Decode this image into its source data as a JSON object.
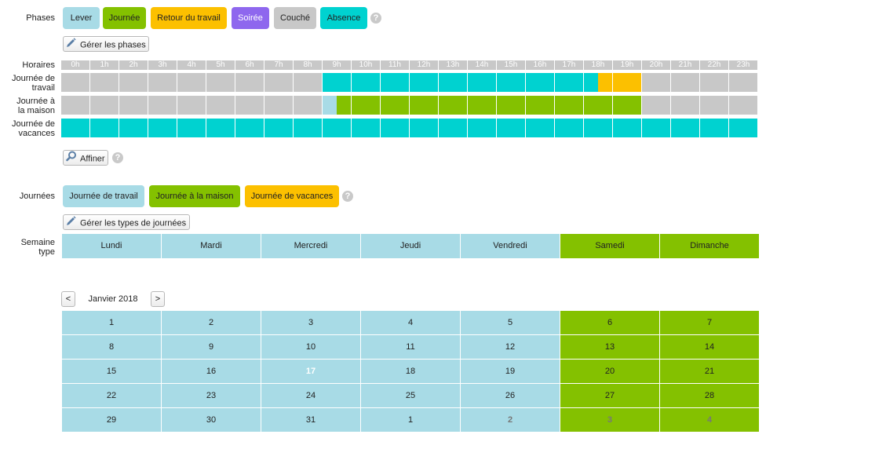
{
  "colors": {
    "lever": "#a8dbe6",
    "journee": "#84c100",
    "retour": "#fcc000",
    "soiree": "#8e67ee",
    "couche": "#c8c8c8",
    "absence": "#00d2d0",
    "hour_header": "#c8c8c8",
    "weekday": "#a8dbe6",
    "weekend": "#84c100"
  },
  "phases": {
    "label": "Phases",
    "chips": [
      {
        "key": "lever",
        "label": "Lever"
      },
      {
        "key": "journee",
        "label": "Journée"
      },
      {
        "key": "retour",
        "label": "Retour du travail"
      },
      {
        "key": "soiree",
        "label": "Soirée"
      },
      {
        "key": "couche",
        "label": "Couché"
      },
      {
        "key": "absence",
        "label": "Absence"
      }
    ],
    "help_icon": "?",
    "manage_button": "Gérer les phases",
    "manage_icon": "pencil-icon"
  },
  "schedule": {
    "hours_label": "Horaires",
    "hours": [
      "0h",
      "1h",
      "2h",
      "3h",
      "4h",
      "5h",
      "6h",
      "7h",
      "8h",
      "9h",
      "10h",
      "11h",
      "12h",
      "13h",
      "14h",
      "15h",
      "16h",
      "17h",
      "18h",
      "19h",
      "20h",
      "21h",
      "22h",
      "23h"
    ],
    "rows": [
      {
        "label_line1": "Journée de",
        "label_line2": "travail",
        "cells": [
          "couche",
          "couche",
          "couche",
          "couche",
          "couche",
          "couche",
          "couche",
          "couche",
          "couche",
          "absence",
          "absence",
          "absence",
          "absence",
          "absence",
          "absence",
          "absence",
          "absence",
          "absence",
          [
            "absence",
            "retour"
          ],
          "retour",
          "couche",
          "couche",
          "couche",
          "couche"
        ]
      },
      {
        "label_line1": "Journée à",
        "label_line2": "la maison",
        "cells": [
          "couche",
          "couche",
          "couche",
          "couche",
          "couche",
          "couche",
          "couche",
          "couche",
          "couche",
          [
            "lever",
            "journee"
          ],
          "journee",
          "journee",
          "journee",
          "journee",
          "journee",
          "journee",
          "journee",
          "journee",
          "journee",
          "journee",
          "couche",
          "couche",
          "couche",
          "couche"
        ]
      },
      {
        "label_line1": "Journée de",
        "label_line2": "vacances",
        "cells": [
          "absence",
          "absence",
          "absence",
          "absence",
          "absence",
          "absence",
          "absence",
          "absence",
          "absence",
          "absence",
          "absence",
          "absence",
          "absence",
          "absence",
          "absence",
          "absence",
          "absence",
          "absence",
          "absence",
          "absence",
          "absence",
          "absence",
          "absence",
          "absence"
        ]
      }
    ],
    "refine_button": "Affiner",
    "refine_icon": "magnifier-icon"
  },
  "days": {
    "label": "Journées",
    "chips": [
      {
        "key": "weekday",
        "label": "Journée de travail"
      },
      {
        "key": "weekend",
        "label": "Journée à la maison"
      },
      {
        "key": "retour",
        "label": "Journée de vacances"
      }
    ],
    "manage_button": "Gérer les types de journées",
    "manage_icon": "pencil-icon"
  },
  "week": {
    "label_line1": "Semaine",
    "label_line2": "type",
    "days": [
      {
        "name": "Lundi",
        "type": "weekday"
      },
      {
        "name": "Mardi",
        "type": "weekday"
      },
      {
        "name": "Mercredi",
        "type": "weekday"
      },
      {
        "name": "Jeudi",
        "type": "weekday"
      },
      {
        "name": "Vendredi",
        "type": "weekday"
      },
      {
        "name": "Samedi",
        "type": "weekend"
      },
      {
        "name": "Dimanche",
        "type": "weekend"
      }
    ]
  },
  "calendar": {
    "prev": "<",
    "next": ">",
    "month": "Janvier 2018",
    "today": "17",
    "rows": [
      [
        "1",
        "2",
        "3",
        "4",
        "5",
        "6",
        "7"
      ],
      [
        "8",
        "9",
        "10",
        "11",
        "12",
        "13",
        "14"
      ],
      [
        "15",
        "16",
        "17",
        "18",
        "19",
        "20",
        "21"
      ],
      [
        "22",
        "23",
        "24",
        "25",
        "26",
        "27",
        "28"
      ],
      [
        "29",
        "30",
        "31",
        "1",
        "2",
        "3",
        "4"
      ]
    ],
    "muted": [
      [
        4,
        4
      ],
      [
        4,
        5
      ],
      [
        4,
        6
      ]
    ]
  }
}
